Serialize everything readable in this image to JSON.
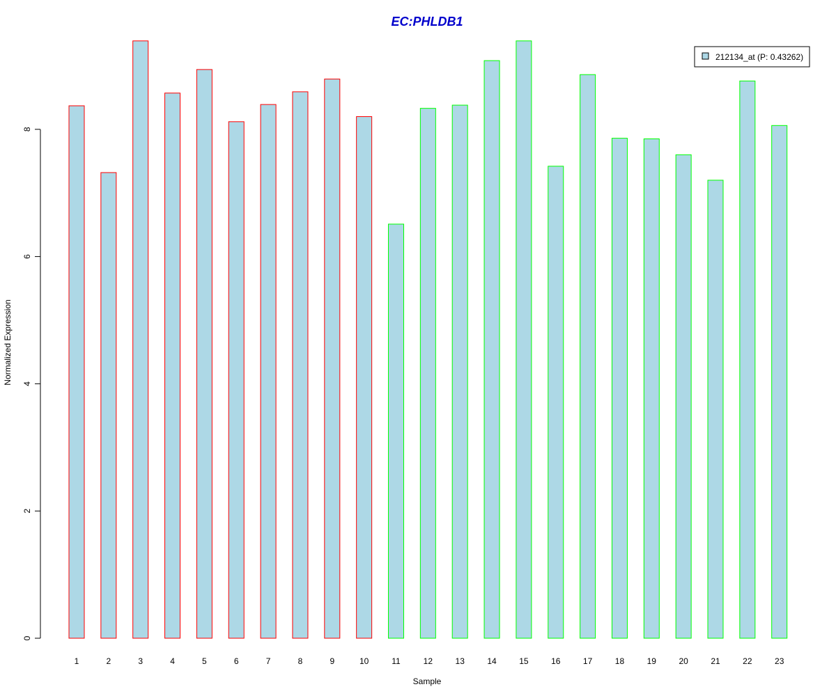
{
  "colors": {
    "title": "#0000CC",
    "bar_fill": "#ADD8E6",
    "group1_border": "#FF0000",
    "group2_border": "#00FF00",
    "axis": "#000000"
  },
  "chart_data": {
    "type": "bar",
    "title": "EC:PHLDB1",
    "xlabel": "Sample",
    "ylabel": "Normalized Expression",
    "ylim": [
      0,
      9.4
    ],
    "yticks": [
      0,
      2,
      4,
      6,
      8
    ],
    "categories": [
      "1",
      "2",
      "3",
      "4",
      "5",
      "6",
      "7",
      "8",
      "9",
      "10",
      "11",
      "12",
      "13",
      "14",
      "15",
      "16",
      "17",
      "18",
      "19",
      "20",
      "21",
      "22",
      "23"
    ],
    "series": [
      {
        "name": "212134_at (P: 0.43262)",
        "values": [
          8.37,
          7.32,
          9.39,
          8.57,
          8.94,
          8.12,
          8.39,
          8.59,
          8.79,
          8.2,
          6.51,
          8.33,
          8.38,
          9.08,
          9.39,
          7.42,
          8.86,
          7.86,
          7.85,
          7.6,
          7.2,
          8.76,
          8.06
        ]
      }
    ],
    "groups": [
      1,
      1,
      1,
      1,
      1,
      1,
      1,
      1,
      1,
      1,
      2,
      2,
      2,
      2,
      2,
      2,
      2,
      2,
      2,
      2,
      2,
      2,
      2
    ],
    "legend": {
      "label": "212134_at (P: 0.43262)",
      "position": "top-right"
    },
    "grid": false
  }
}
